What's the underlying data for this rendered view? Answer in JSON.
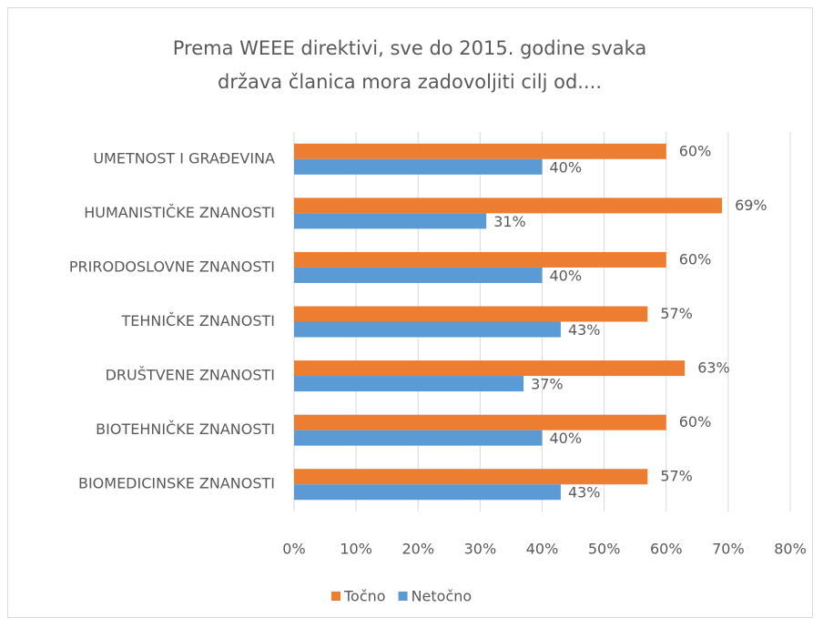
{
  "chart_data": {
    "type": "bar",
    "orientation": "horizontal",
    "title": [
      "Prema WEEE direktivi, sve do 2015. godine svaka",
      "država članica mora zadovoljiti cilj od...."
    ],
    "categories": [
      "UMETNOST I GRAĐEVINA",
      "HUMANISTIČKE ZNANOSTI",
      "PRIRODOSLOVNE ZNANOSTI",
      "TEHNIČKE ZNANOSTI",
      "DRUŠTVENE ZNANOSTI",
      "BIOTEHNIČKE ZNANOSTI",
      "BIOMEDICINSKE ZNANOSTI"
    ],
    "series": [
      {
        "name": "Točno",
        "color": "#ed7d31",
        "values": [
          60,
          69,
          60,
          57,
          63,
          60,
          57
        ],
        "value_labels": [
          "60%",
          "69%",
          "60%",
          "57%",
          "63%",
          "60%",
          "57%"
        ]
      },
      {
        "name": "Netočno",
        "color": "#5b9bd5",
        "values": [
          40,
          31,
          40,
          43,
          37,
          40,
          43
        ],
        "value_labels": [
          "40%",
          "31%",
          "40%",
          "43%",
          "37%",
          "40%",
          "43%"
        ]
      }
    ],
    "xlim": [
      0,
      80
    ],
    "xticks": [
      {
        "value": 0,
        "label": "0%"
      },
      {
        "value": 10,
        "label": "10%"
      },
      {
        "value": 20,
        "label": "20%"
      },
      {
        "value": 30,
        "label": "30%"
      },
      {
        "value": 40,
        "label": "40%"
      },
      {
        "value": 50,
        "label": "50%"
      },
      {
        "value": 60,
        "label": "60%"
      },
      {
        "value": 70,
        "label": "70%"
      },
      {
        "value": 80,
        "label": "80%"
      }
    ],
    "grid": true,
    "legend": "bottom"
  }
}
